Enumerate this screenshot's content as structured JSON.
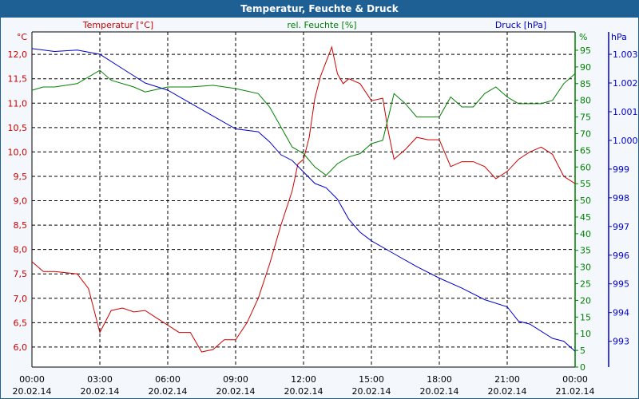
{
  "window": {
    "title": "Temperatur, Feuchte & Druck"
  },
  "colors": {
    "temp": "#cc0000",
    "hum": "#008000",
    "press": "#0000cc",
    "title_bar": "#1e5f94"
  },
  "chart_data": {
    "type": "line",
    "title": "Temperatur, Feuchte & Druck",
    "x_unit": "hours since 20.02.14 00:00",
    "x_ticks": [
      {
        "time": "00:00",
        "date": "20.02.14"
      },
      {
        "time": "03:00",
        "date": "20.02.14"
      },
      {
        "time": "06:00",
        "date": "20.02.14"
      },
      {
        "time": "09:00",
        "date": "20.02.14"
      },
      {
        "time": "12:00",
        "date": "20.02.14"
      },
      {
        "time": "15:00",
        "date": "20.02.14"
      },
      {
        "time": "18:00",
        "date": "20.02.14"
      },
      {
        "time": "21:00",
        "date": "20.02.14"
      },
      {
        "time": "00:00",
        "date": "21.02.14"
      }
    ],
    "axes": {
      "temp": {
        "legend": "Temperatur [°C]",
        "unit": "°C",
        "range": [
          5.59,
          12.46
        ],
        "ticks": [
          "12,0",
          "11,5",
          "11,0",
          "10,5",
          "10,0",
          "9,5",
          "9,0",
          "8,5",
          "8,0",
          "7,5",
          "7,0",
          "6,5",
          "6,0"
        ],
        "tick_values": [
          12,
          11.5,
          11,
          10.5,
          10,
          9.5,
          9,
          8.5,
          8,
          7.5,
          7,
          6.5,
          6
        ]
      },
      "hum": {
        "legend": "rel. Feuchte [%]",
        "unit": "%",
        "range": [
          0,
          100.5
        ],
        "ticks": [
          "95",
          "90",
          "85",
          "80",
          "75",
          "70",
          "65",
          "60",
          "55",
          "50",
          "45",
          "40",
          "35",
          "30",
          "25",
          "20",
          "15",
          "10",
          "5",
          "0"
        ],
        "tick_values": [
          95,
          90,
          85,
          80,
          75,
          70,
          65,
          60,
          55,
          50,
          45,
          40,
          35,
          30,
          25,
          20,
          15,
          10,
          5,
          0
        ]
      },
      "press": {
        "legend": "Druck [hPa]",
        "unit": "hPa",
        "range": [
          992.1,
          1003.78
        ],
        "ticks": [
          "1.003",
          "1.002",
          "1.001",
          "1.000",
          "999",
          "998",
          "997",
          "996",
          "995",
          "994",
          "993"
        ],
        "tick_values": [
          1003,
          1002,
          1001,
          1000,
          999,
          998,
          997,
          996,
          995,
          994,
          993
        ]
      }
    },
    "series": [
      {
        "name": "Temperatur",
        "axis": "temp",
        "x": [
          0,
          0.5,
          1,
          2,
          2.5,
          3,
          3.5,
          4,
          4.5,
          5,
          5.5,
          6,
          6.5,
          7,
          7.5,
          8,
          8.5,
          9,
          9.5,
          10,
          10.5,
          11,
          11.5,
          11.75,
          12,
          12.25,
          12.5,
          12.75,
          13,
          13.25,
          13.5,
          13.75,
          14,
          14.5,
          15,
          15.5,
          15.75,
          16,
          16.5,
          17,
          17.5,
          18,
          18.5,
          19,
          19.5,
          20,
          20.5,
          21,
          21.5,
          22,
          22.5,
          23,
          23.5,
          24
        ],
        "y": [
          7.75,
          7.55,
          7.55,
          7.5,
          7.2,
          6.3,
          6.75,
          6.8,
          6.72,
          6.75,
          6.6,
          6.45,
          6.3,
          6.3,
          5.9,
          5.95,
          6.15,
          6.15,
          6.5,
          7.0,
          7.7,
          8.5,
          9.2,
          9.75,
          9.85,
          10.3,
          11.1,
          11.55,
          11.85,
          12.15,
          11.6,
          11.4,
          11.5,
          11.4,
          11.05,
          11.1,
          10.4,
          9.85,
          10.05,
          10.3,
          10.25,
          10.25,
          9.7,
          9.8,
          9.8,
          9.7,
          9.45,
          9.6,
          9.85,
          10.0,
          10.1,
          9.95,
          9.5,
          9.35
        ]
      },
      {
        "name": "rel. Feuchte",
        "axis": "hum",
        "x": [
          0,
          0.5,
          1,
          2,
          3,
          3.5,
          4.5,
          5,
          6,
          7,
          8,
          9,
          10,
          10.5,
          11,
          11.5,
          12,
          12.5,
          13,
          13.5,
          14,
          14.5,
          15,
          15.5,
          15.75,
          16,
          16.5,
          17,
          17.5,
          18,
          18.5,
          19,
          19.5,
          20,
          20.5,
          21,
          21.5,
          22,
          22.5,
          23,
          23.5,
          24
        ],
        "y": [
          83,
          84,
          84,
          85,
          89,
          86,
          84,
          82.5,
          84,
          84,
          84.5,
          83.5,
          82,
          78,
          72,
          66,
          64,
          60,
          57.5,
          61,
          63,
          64,
          67,
          68,
          75,
          82,
          79,
          75,
          75,
          75,
          81,
          78,
          78,
          82,
          84,
          81,
          79,
          79,
          79,
          80,
          85,
          88
        ]
      },
      {
        "name": "Druck",
        "axis": "press",
        "x": [
          0,
          1,
          2,
          3,
          4,
          5,
          6,
          7,
          8,
          9,
          10,
          10.5,
          11,
          11.5,
          12,
          12.5,
          13,
          13.5,
          14,
          14.5,
          15,
          16,
          17,
          18,
          19,
          20,
          21,
          21.5,
          22,
          23,
          23.5,
          24
        ],
        "y": [
          1003.2,
          1003.1,
          1003.15,
          1003.0,
          1002.5,
          1002.0,
          1001.75,
          1001.3,
          1000.85,
          1000.4,
          1000.3,
          999.95,
          999.5,
          999.3,
          998.9,
          998.5,
          998.35,
          997.95,
          997.25,
          996.8,
          996.5,
          996.05,
          995.6,
          995.2,
          994.85,
          994.45,
          994.2,
          993.7,
          993.6,
          993.1,
          993.0,
          992.65
        ]
      }
    ]
  }
}
